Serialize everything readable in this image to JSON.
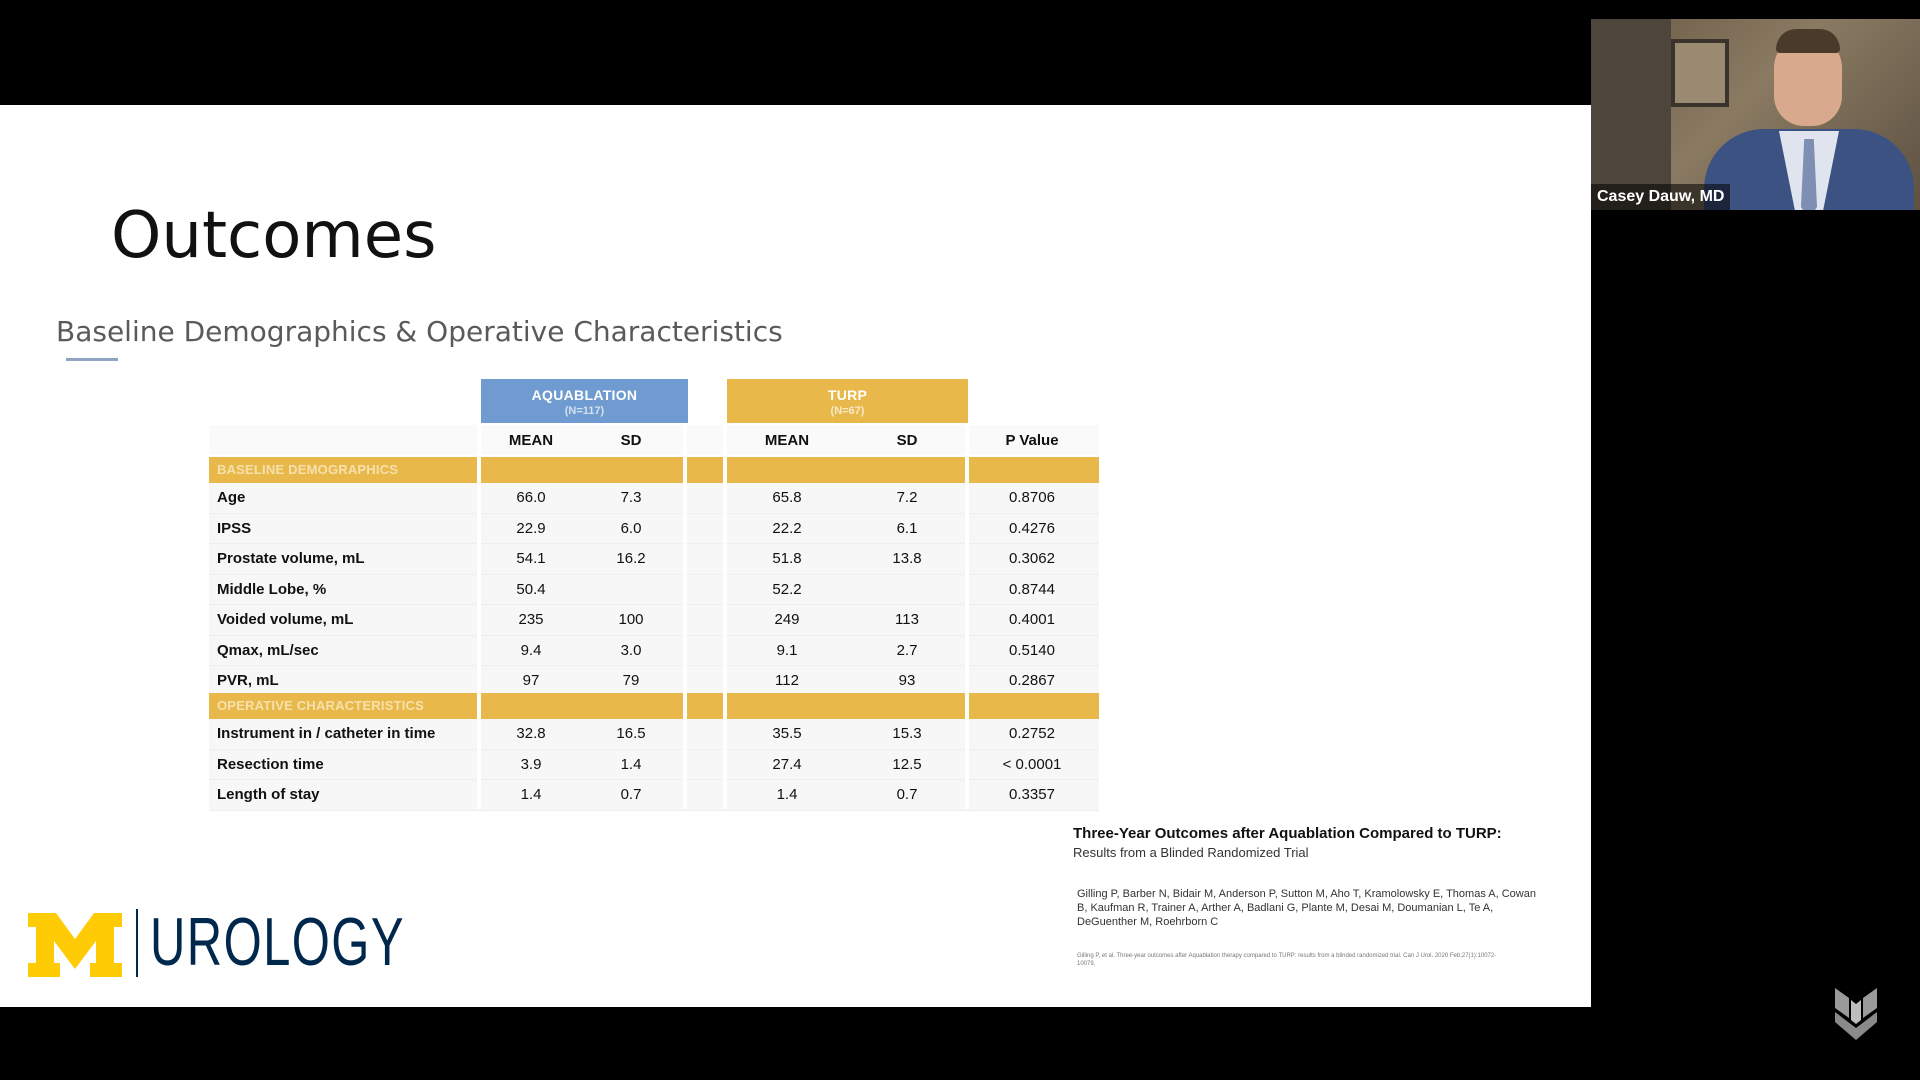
{
  "slide": {
    "title": "Outcomes",
    "subtitle": "Baseline Demographics & Operative Characteristics"
  },
  "table": {
    "groups": [
      {
        "name": "AQUABLATION",
        "n": "(N=117)",
        "color": "#6f9bd0"
      },
      {
        "name": "TURP",
        "n": "(N=67)",
        "color": "#e8b84a"
      }
    ],
    "headers": [
      "MEAN",
      "SD",
      "MEAN",
      "SD",
      "P Value"
    ],
    "sections": [
      {
        "label": "BASELINE DEMOGRAPHICS",
        "rows": [
          {
            "label": "Age",
            "aq_mean": "66.0",
            "aq_sd": "7.3",
            "tu_mean": "65.8",
            "tu_sd": "7.2",
            "p": "0.8706"
          },
          {
            "label": "IPSS",
            "aq_mean": "22.9",
            "aq_sd": "6.0",
            "tu_mean": "22.2",
            "tu_sd": "6.1",
            "p": "0.4276"
          },
          {
            "label": "Prostate volume, mL",
            "aq_mean": "54.1",
            "aq_sd": "16.2",
            "tu_mean": "51.8",
            "tu_sd": "13.8",
            "p": "0.3062"
          },
          {
            "label": "Middle Lobe, %",
            "aq_mean": "50.4",
            "aq_sd": "",
            "tu_mean": "52.2",
            "tu_sd": "",
            "p": "0.8744"
          },
          {
            "label": "Voided volume, mL",
            "aq_mean": "235",
            "aq_sd": "100",
            "tu_mean": "249",
            "tu_sd": "113",
            "p": "0.4001"
          },
          {
            "label": "Qmax, mL/sec",
            "aq_mean": "9.4",
            "aq_sd": "3.0",
            "tu_mean": "9.1",
            "tu_sd": "2.7",
            "p": "0.5140"
          },
          {
            "label": "PVR, mL",
            "aq_mean": "97",
            "aq_sd": "79",
            "tu_mean": "112",
            "tu_sd": "93",
            "p": "0.2867"
          }
        ]
      },
      {
        "label": "OPERATIVE CHARACTERISTICS",
        "rows": [
          {
            "label": "Instrument in / catheter in time",
            "aq_mean": "32.8",
            "aq_sd": "16.5",
            "tu_mean": "35.5",
            "tu_sd": "15.3",
            "p": "0.2752"
          },
          {
            "label": "Resection time",
            "aq_mean": "3.9",
            "aq_sd": "1.4",
            "tu_mean": "27.4",
            "tu_sd": "12.5",
            "p": "< 0.0001"
          },
          {
            "label": "Length of stay",
            "aq_mean": "1.4",
            "aq_sd": "0.7",
            "tu_mean": "1.4",
            "tu_sd": "0.7",
            "p": "0.3357"
          }
        ]
      }
    ]
  },
  "reference": {
    "title": "Three-Year Outcomes after Aquablation Compared to TURP:",
    "subtitle": "Results from a Blinded Randomized Trial",
    "authors": "Gilling P, Barber N, Bidair M, Anderson P, Sutton M, Aho T, Kramolowsky E, Thomas A, Cowan B, Kaufman R, Trainer A, Arther A, Badlani G, Plante M, Desai M, Doumanian L, Te A, DeGuenther M, Roehrborn C",
    "citation": "Gilling P, et al. Three-year outcomes after Aquablation therapy compared to TURP: results from a blinded randomized trial. Can J Urol. 2020 Feb;27(1):10072-10079."
  },
  "logo": {
    "text": "UROLOGY",
    "m_color": "#ffcb05",
    "text_color": "#00274c"
  },
  "webcam": {
    "speaker_name": "Casey Dauw, MD"
  }
}
